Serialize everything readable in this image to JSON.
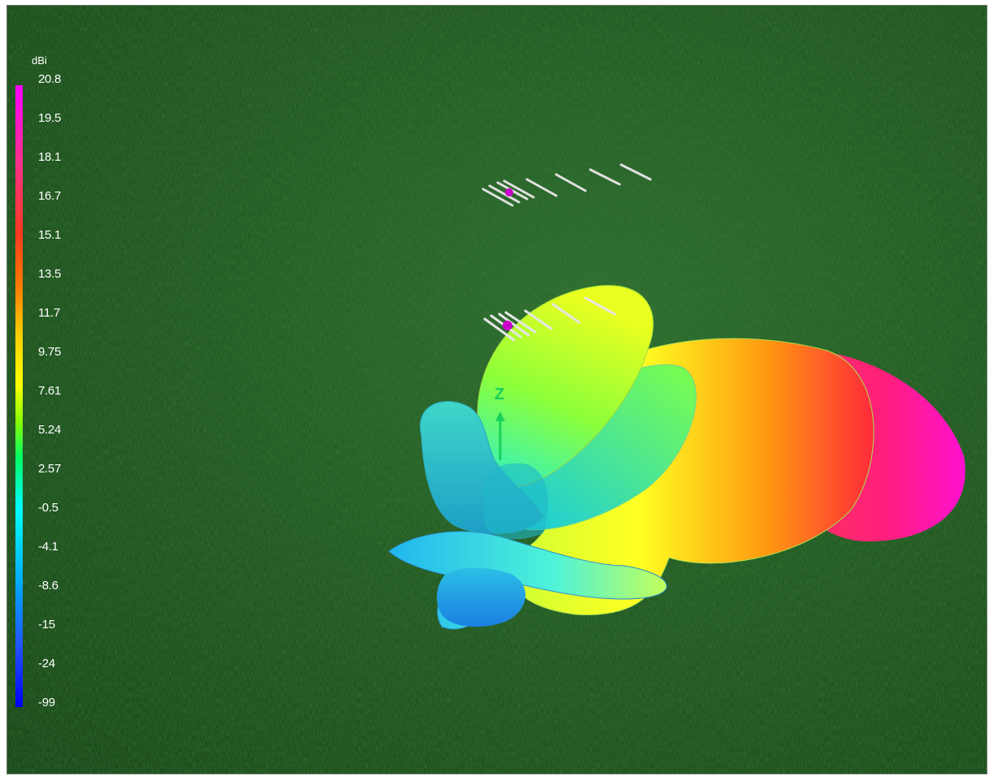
{
  "legend": {
    "unit": "dBi",
    "ticks": [
      "20.8",
      "19.5",
      "18.1",
      "16.7",
      "15.1",
      "13.5",
      "11.7",
      "9.75",
      "7.61",
      "5.24",
      "2.57",
      "-0.5",
      "-4.1",
      "-8.6",
      "-15",
      "-24",
      "-99"
    ]
  },
  "axis": {
    "z_label": "Z"
  },
  "colors": {
    "ground": "#255d25",
    "max_gain": "#ff00ff",
    "min_gain": "#0000ff",
    "antenna_elements": "#e6e6e6",
    "feed_point": "#cc00cc",
    "axis": "#19d15a"
  }
}
